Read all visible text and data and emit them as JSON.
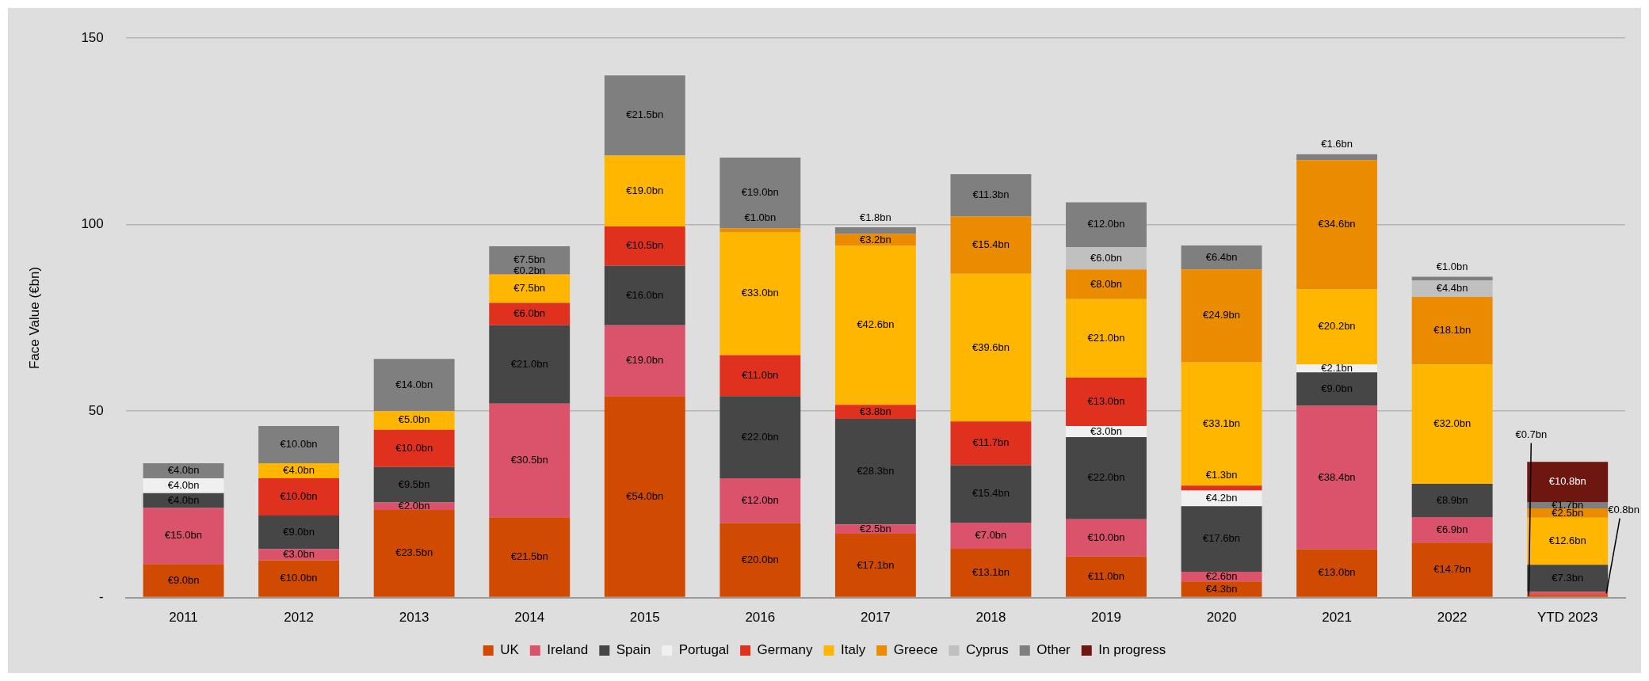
{
  "chart_data": {
    "type": "bar",
    "stacked": true,
    "ylabel": "Face Value (€bn)",
    "categories": [
      "2011",
      "2012",
      "2013",
      "2014",
      "2015",
      "2016",
      "2017",
      "2018",
      "2019",
      "2020",
      "2021",
      "2022",
      "YTD 2023"
    ],
    "ylim": [
      0,
      150
    ],
    "yticks": [
      {
        "value": 0,
        "label": "-"
      },
      50,
      100,
      150
    ],
    "grid": "y",
    "legend": "bottom",
    "series": [
      {
        "name": "UK",
        "color": "#d04a02",
        "values": [
          9,
          10,
          23.5,
          21.5,
          54,
          20,
          17.1,
          13.1,
          11,
          4.3,
          13,
          14.7,
          0.7
        ],
        "value_labels": [
          "€9.0bn",
          "€10.0bn",
          "€23.5bn",
          "€21.5bn",
          "€54.0bn",
          "€20.0bn",
          "€17.1bn",
          "€13.1bn",
          "€11.0bn",
          "€4.3bn",
          "€13.0bn",
          "€14.7bn",
          "€0.7bn"
        ]
      },
      {
        "name": "Ireland",
        "color": "#db536a",
        "values": [
          15,
          3,
          2,
          30.5,
          19,
          12,
          2.5,
          7,
          10,
          2.6,
          38.4,
          6.9,
          0.8
        ],
        "value_labels": [
          "€15.0bn",
          "€3.0bn",
          "€2.0bn",
          "€30.5bn",
          "€19.0bn",
          "€12.0bn",
          "€2.5bn",
          "€7.0bn",
          "€10.0bn",
          "€2.6bn",
          "€38.4bn",
          "€6.9bn",
          "€0.8bn"
        ]
      },
      {
        "name": "Spain",
        "color": "#464646",
        "values": [
          4,
          9,
          9.5,
          21,
          16,
          22,
          28.3,
          15.4,
          22,
          17.6,
          9,
          8.9,
          7.3
        ],
        "value_labels": [
          "€4.0bn",
          "€9.0bn",
          "€9.5bn",
          "€21.0bn",
          "€16.0bn",
          "€22.0bn",
          "€28.3bn",
          "€15.4bn",
          "€22.0bn",
          "€17.6bn",
          "€9.0bn",
          "€8.9bn",
          "€7.3bn"
        ]
      },
      {
        "name": "Portugal",
        "color": "#f0f0f0",
        "values": [
          4,
          null,
          null,
          null,
          null,
          null,
          null,
          null,
          3,
          4.2,
          2.1,
          null,
          null
        ],
        "value_labels": [
          "€4.0bn",
          null,
          null,
          null,
          null,
          null,
          null,
          null,
          "€3.0bn",
          "€4.2bn",
          "€2.1bn",
          null,
          null
        ]
      },
      {
        "name": "Germany",
        "color": "#e0301e",
        "values": [
          null,
          10,
          10,
          6,
          10.5,
          11,
          3.8,
          11.7,
          13,
          1.3,
          null,
          null,
          null
        ],
        "value_labels": [
          null,
          "€10.0bn",
          "€10.0bn",
          "€6.0bn",
          "€10.5bn",
          "€11.0bn",
          "€3.8bn",
          "€11.7bn",
          "€13.0bn",
          "€1.3bn",
          null,
          null,
          null
        ]
      },
      {
        "name": "Italy",
        "color": "#ffb600",
        "values": [
          null,
          4,
          5,
          7.5,
          19,
          33,
          42.6,
          39.6,
          21,
          33.1,
          20.2,
          32,
          12.6
        ],
        "value_labels": [
          null,
          "€4.0bn",
          "€5.0bn",
          "€7.5bn",
          "€19.0bn",
          "€33.0bn",
          "€42.6bn",
          "€39.6bn",
          "€21.0bn",
          "€33.1bn",
          "€20.2bn",
          "€32.0bn",
          "€12.6bn"
        ]
      },
      {
        "name": "Greece",
        "color": "#eb8c00",
        "values": [
          null,
          null,
          null,
          0.2,
          null,
          1,
          3.2,
          15.4,
          8,
          24.9,
          34.6,
          18.1,
          2.5
        ],
        "value_labels": [
          null,
          null,
          null,
          "€0.2bn",
          null,
          "€1.0bn",
          "€3.2bn",
          "€15.4bn",
          "€8.0bn",
          "€24.9bn",
          "€34.6bn",
          "€18.1bn",
          "€2.5bn"
        ]
      },
      {
        "name": "Cyprus",
        "color": "#c0c0c0",
        "values": [
          null,
          null,
          null,
          null,
          null,
          null,
          null,
          null,
          6,
          null,
          null,
          4.4,
          null
        ],
        "value_labels": [
          null,
          null,
          null,
          null,
          null,
          null,
          null,
          null,
          "€6.0bn",
          null,
          null,
          "€4.4bn",
          null
        ]
      },
      {
        "name": "Other",
        "color": "#7f7f7f",
        "values": [
          4,
          10,
          14,
          7.5,
          21.5,
          19,
          1.8,
          11.3,
          12,
          6.4,
          1.6,
          1,
          1.7
        ],
        "value_labels": [
          "€4.0bn",
          "€10.0bn",
          "€14.0bn",
          "€7.5bn",
          "€21.5bn",
          "€19.0bn",
          "€1.8bn",
          "€11.3bn",
          "€12.0bn",
          "€6.4bn",
          "€1.6bn",
          "€1.0bn",
          "€1.7bn"
        ]
      },
      {
        "name": "In progress",
        "color": "#6e1610",
        "values": [
          null,
          null,
          null,
          null,
          null,
          null,
          null,
          null,
          null,
          null,
          null,
          null,
          10.8
        ],
        "value_labels": [
          null,
          null,
          null,
          null,
          null,
          null,
          null,
          null,
          null,
          null,
          null,
          null,
          "€10.8bn"
        ]
      }
    ]
  }
}
